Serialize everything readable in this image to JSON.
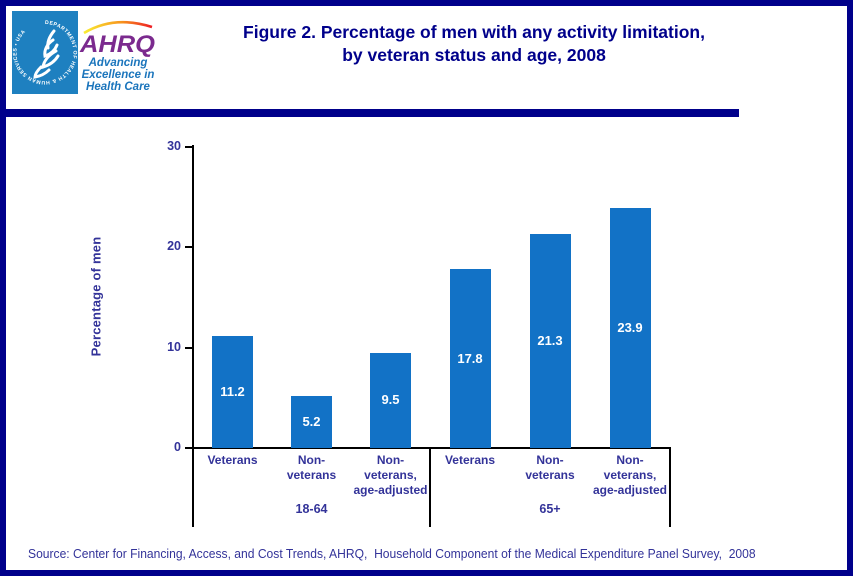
{
  "header": {
    "title_line1": "Figure 2. Percentage of men with any activity limitation,",
    "title_line2": "by veteran status and age, 2008"
  },
  "logo": {
    "hhs_circle_text": "DEPARTMENT OF HEALTH & HUMAN SERVICES • USA",
    "ahrq_acronym": "AHRQ",
    "tagline_line1": "Advancing",
    "tagline_line2": "Excellence in",
    "tagline_line3": "Health Care"
  },
  "chart_data": {
    "type": "bar",
    "title": "Figure 2. Percentage of men with any activity limitation, by veteran status and age, 2008",
    "ylabel": "Percentage of men",
    "xlabel": "",
    "ylim": [
      0,
      30
    ],
    "yticks": [
      0,
      10,
      20,
      30
    ],
    "grid": false,
    "legend": false,
    "bar_color": "#1272C6",
    "value_label_color": "#FFFFFF",
    "groups": [
      {
        "label": "18-64",
        "categories": [
          "Veterans",
          "Non-veterans",
          "Non-veterans, age-adjusted"
        ],
        "category_labels": [
          "Veterans",
          "Non-\nveterans",
          "Non-\nveterans,\nage-adjusted"
        ],
        "values": [
          11.2,
          5.2,
          9.5
        ]
      },
      {
        "label": "65+",
        "categories": [
          "Veterans",
          "Non-veterans",
          "Non-veterans, age-adjusted"
        ],
        "category_labels": [
          "Veterans",
          "Non-\nveterans",
          "Non-\nveterans,\nage-adjusted"
        ],
        "values": [
          17.8,
          21.3,
          23.9
        ]
      }
    ]
  },
  "source": "Source: Center for Financing, Access, and Cost Trends, AHRQ,  Household Component of the Medical Expenditure Panel Survey,  2008",
  "colors": {
    "frame": "#00008B",
    "title_text": "#00008B",
    "axis_label_text": "#333399",
    "bar_fill": "#1272C6",
    "axis_line": "#000000",
    "source_text": "#333399",
    "hhs_blue": "#1E80C0",
    "ahrq_purple": "#7B2A8E",
    "tagline_blue": "#1B75BC"
  }
}
